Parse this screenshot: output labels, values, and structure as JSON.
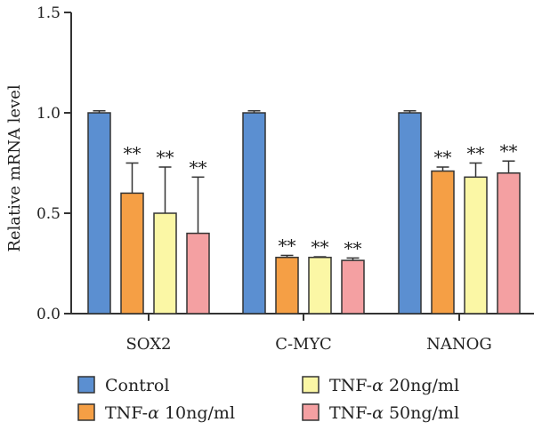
{
  "chart_data": {
    "type": "bar",
    "title": "",
    "xlabel": "",
    "ylabel": "Relative mRNA level",
    "ylim": [
      0,
      1.5
    ],
    "yticks": [
      0.0,
      0.5,
      1.0,
      1.5
    ],
    "ytick_labels": [
      "0.0",
      "0.5",
      "1.0",
      "1.5"
    ],
    "categories": [
      "SOX2",
      "C-MYC",
      "NANOG"
    ],
    "series": [
      {
        "name": "Control",
        "color": "#5b8fd1",
        "values": [
          1.0,
          1.0,
          1.0
        ],
        "errors": [
          0.01,
          0.01,
          0.01
        ],
        "significance": [
          "",
          "",
          ""
        ]
      },
      {
        "name": "TNF-α 10ng/ml",
        "color": "#f59f45",
        "values": [
          0.6,
          0.28,
          0.71
        ],
        "errors": [
          0.15,
          0.01,
          0.02
        ],
        "significance": [
          "**",
          "**",
          "**"
        ]
      },
      {
        "name": "TNF-α 20ng/ml",
        "color": "#fbf7a5",
        "values": [
          0.5,
          0.28,
          0.68
        ],
        "errors": [
          0.23,
          0.003,
          0.07
        ],
        "significance": [
          "**",
          "**",
          "**"
        ]
      },
      {
        "name": "TNF-α 50ng/ml",
        "color": "#f4a0a2",
        "values": [
          0.4,
          0.265,
          0.7
        ],
        "errors": [
          0.28,
          0.012,
          0.06
        ],
        "significance": [
          "**",
          "**",
          "**"
        ]
      }
    ],
    "legend": {
      "position": "bottom",
      "entries": [
        {
          "prefix": "Control",
          "greek": "",
          "suffix": ""
        },
        {
          "prefix": "TNF-",
          "greek": "α",
          "suffix": " 10ng/ml"
        },
        {
          "prefix": "TNF-",
          "greek": "α",
          "suffix": " 20ng/ml"
        },
        {
          "prefix": "TNF-",
          "greek": "α",
          "suffix": " 50ng/ml"
        }
      ]
    },
    "grid": false
  }
}
